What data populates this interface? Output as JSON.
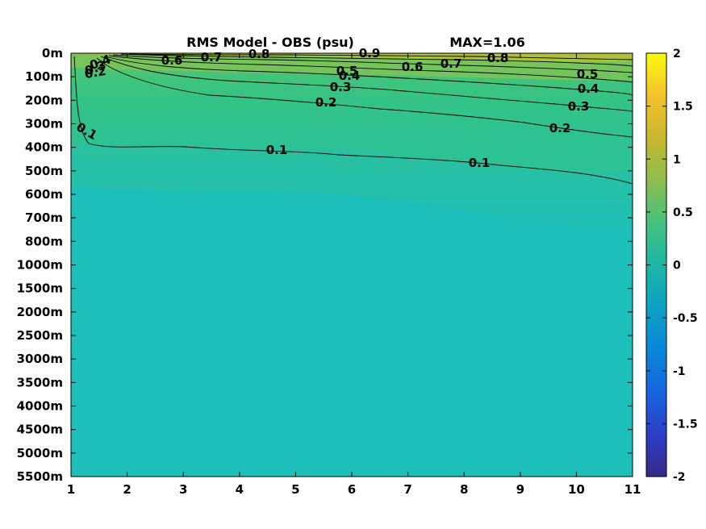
{
  "chart_data": {
    "type": "heatmap",
    "title": "RMS Model - OBS (psu)",
    "max_label": "MAX=1.06",
    "x_ticks": [
      "1",
      "2",
      "3",
      "4",
      "5",
      "6",
      "7",
      "8",
      "9",
      "10",
      "11"
    ],
    "xlim": [
      1,
      11
    ],
    "y_ticks": [
      "0m",
      "100m",
      "200m",
      "300m",
      "400m",
      "500m",
      "600m",
      "700m",
      "800m",
      "1000m",
      "1500m",
      "2000m",
      "2500m",
      "3000m",
      "3500m",
      "4000m",
      "4500m",
      "5000m",
      "5500m"
    ],
    "y_reversed": true,
    "colorbar": {
      "ticks": [
        "2",
        "1.5",
        "1",
        "0.5",
        "0",
        "-0.5",
        "-1",
        "-1.5",
        "-2"
      ],
      "range": [
        -2,
        2
      ],
      "colormap": "parula"
    },
    "contour_levels": [
      0.1,
      0.2,
      0.3,
      0.4,
      0.5,
      0.6,
      0.7,
      0.8,
      0.9
    ],
    "contour_labels": [
      "0.4",
      "0.3",
      "0.2",
      "0.6",
      "0.7",
      "0.8",
      "0.9",
      "0.5",
      "0.4",
      "0.6",
      "0.7",
      "0.8",
      "0.5",
      "0.3",
      "0.4",
      "0.2",
      "0.3",
      "0.2",
      "0.1",
      "0.1",
      "0.1"
    ],
    "background_value": 0.05,
    "grid": false
  }
}
